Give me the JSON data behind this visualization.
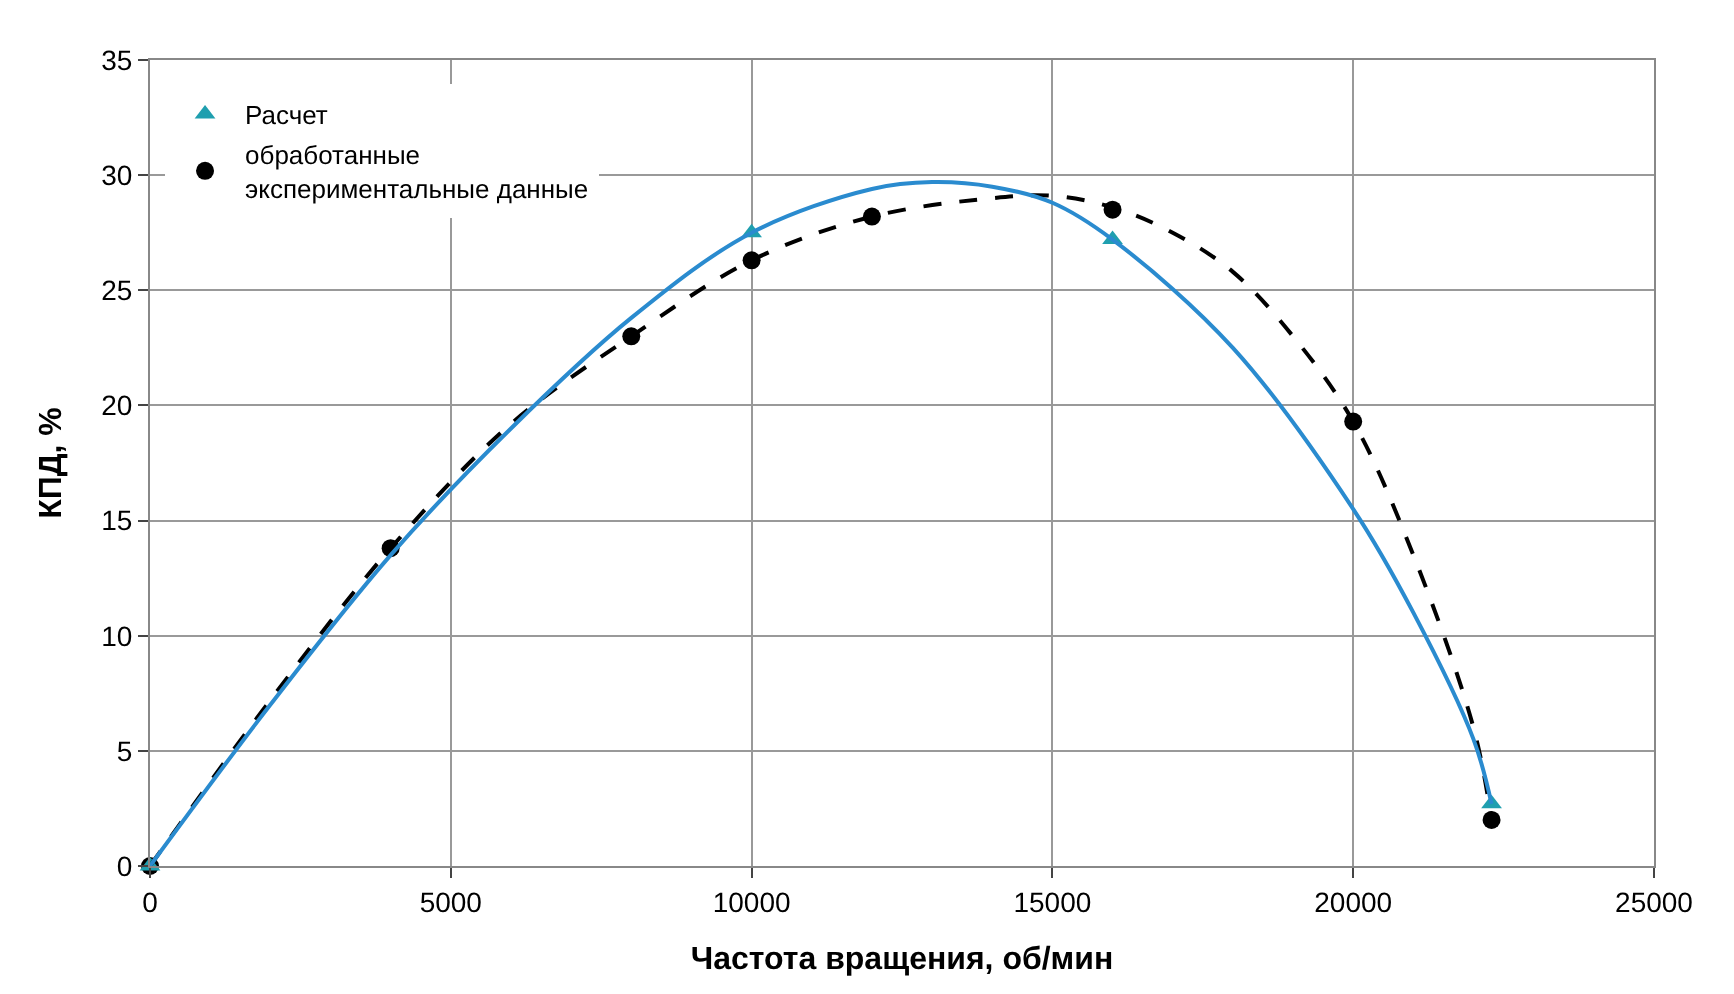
{
  "chart_data": {
    "type": "scatter",
    "xlabel": "Частота вращения, об/мин",
    "ylabel": "КПД, %",
    "xlim": [
      0,
      25000
    ],
    "xticks": [
      0,
      5000,
      10000,
      15000,
      20000,
      25000
    ],
    "ylim": [
      0,
      35
    ],
    "yticks": [
      0,
      5,
      10,
      15,
      20,
      25,
      30,
      35
    ],
    "grid": true,
    "legend": "top left",
    "series": [
      {
        "type": "line",
        "color": "#2a8bcf",
        "marker": "none",
        "line_style": "solid",
        "x": [
          0,
          2000,
          4000,
          6000,
          8000,
          10000,
          12000,
          13000,
          14000,
          15000,
          16000,
          18000,
          20000,
          21000,
          22000,
          22300
        ],
        "values": [
          0,
          7,
          13.5,
          19,
          23.8,
          27.5,
          29.4,
          29.7,
          29.5,
          28.8,
          27.2,
          22.5,
          15.5,
          11,
          5.5,
          2.7
        ]
      },
      {
        "type": "line",
        "color": "#000000",
        "marker": "none",
        "line_style": "dashed",
        "x": [
          0,
          2000,
          4000,
          6000,
          8000,
          10000,
          12000,
          14000,
          15000,
          16000,
          17000,
          18000,
          19000,
          20000,
          21000,
          22000,
          22300
        ],
        "values": [
          0,
          7.2,
          13.8,
          19.2,
          23,
          26.3,
          28.2,
          29,
          29.1,
          28.6,
          27.5,
          25.8,
          23,
          19.3,
          13.5,
          6,
          2
        ]
      },
      {
        "name": "Расчет",
        "color": "#1f9faf",
        "marker": "triangle",
        "x": [
          0,
          10000,
          16000,
          22300
        ],
        "values": [
          0,
          27.5,
          27.2,
          2.7
        ]
      },
      {
        "name": "обработанные\nэкспериментальные данные",
        "color": "#000000",
        "marker": "circle",
        "x": [
          0,
          4000,
          8000,
          10000,
          12000,
          16000,
          20000,
          22300
        ],
        "values": [
          0,
          13.8,
          23,
          26.3,
          28.2,
          28.5,
          19.3,
          2
        ]
      }
    ]
  }
}
